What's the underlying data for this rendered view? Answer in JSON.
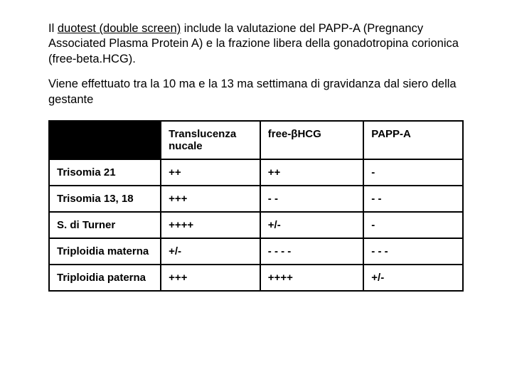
{
  "intro": {
    "p1_pre": "Il ",
    "p1_underlined": "duotest (double screen)",
    "p1_post": " include la valutazione del PAPP-A (Pregnancy Associated Plasma Protein A) e la frazione libera della gonadotropina corionica (free-beta.HCG).",
    "p2": "Viene effettuato tra la 10 ma e la 13 ma settimana di gravidanza dal siero della gestante"
  },
  "table": {
    "type": "table",
    "columns": [
      "",
      "Translucenza nucale",
      "free-βHCG",
      "PAPP-A"
    ],
    "rows": [
      [
        "Trisomia 21",
        "++",
        "++",
        "-"
      ],
      [
        "Trisomia 13, 18",
        "+++",
        "- -",
        "- -"
      ],
      [
        "S. di Turner",
        "++++",
        "+/-",
        "-"
      ],
      [
        "Triploidia materna",
        "+/-",
        "- - - -",
        "- - -"
      ],
      [
        "Triploidia paterna",
        "+++",
        "++++",
        "+/-"
      ]
    ],
    "col_widths_pct": [
      27,
      24,
      25,
      24
    ],
    "border_color": "#000000",
    "corner_bg": "#000000",
    "cell_bg": "#ffffff",
    "font_size_pt": 11,
    "font_weight": "bold"
  },
  "colors": {
    "background": "#ffffff",
    "text": "#000000"
  }
}
